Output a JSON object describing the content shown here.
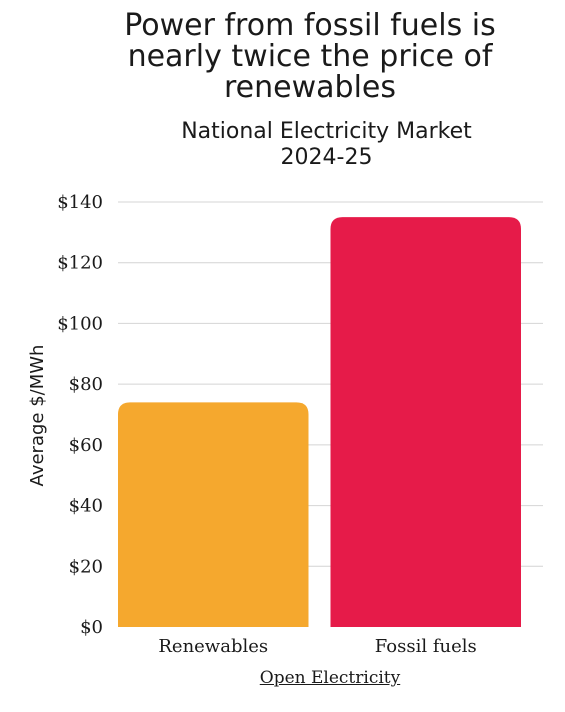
{
  "chart_data": {
    "type": "bar",
    "title": "Power from fossil fuels is nearly twice the price of renewables",
    "subtitle": "National Electricity Market 2024-25",
    "categories": [
      "Renewables",
      "Fossil fuels"
    ],
    "values": [
      74,
      135
    ],
    "colors": [
      "#f5a82e",
      "#e61b49"
    ],
    "ylabel": "Average $/MWh",
    "ylim": [
      0,
      140
    ],
    "yticks": [
      "$0",
      "$20",
      "$40",
      "$60",
      "$80",
      "$100",
      "$120",
      "$140"
    ],
    "grid": true
  },
  "footer": {
    "source_link": "Open Electricity"
  }
}
